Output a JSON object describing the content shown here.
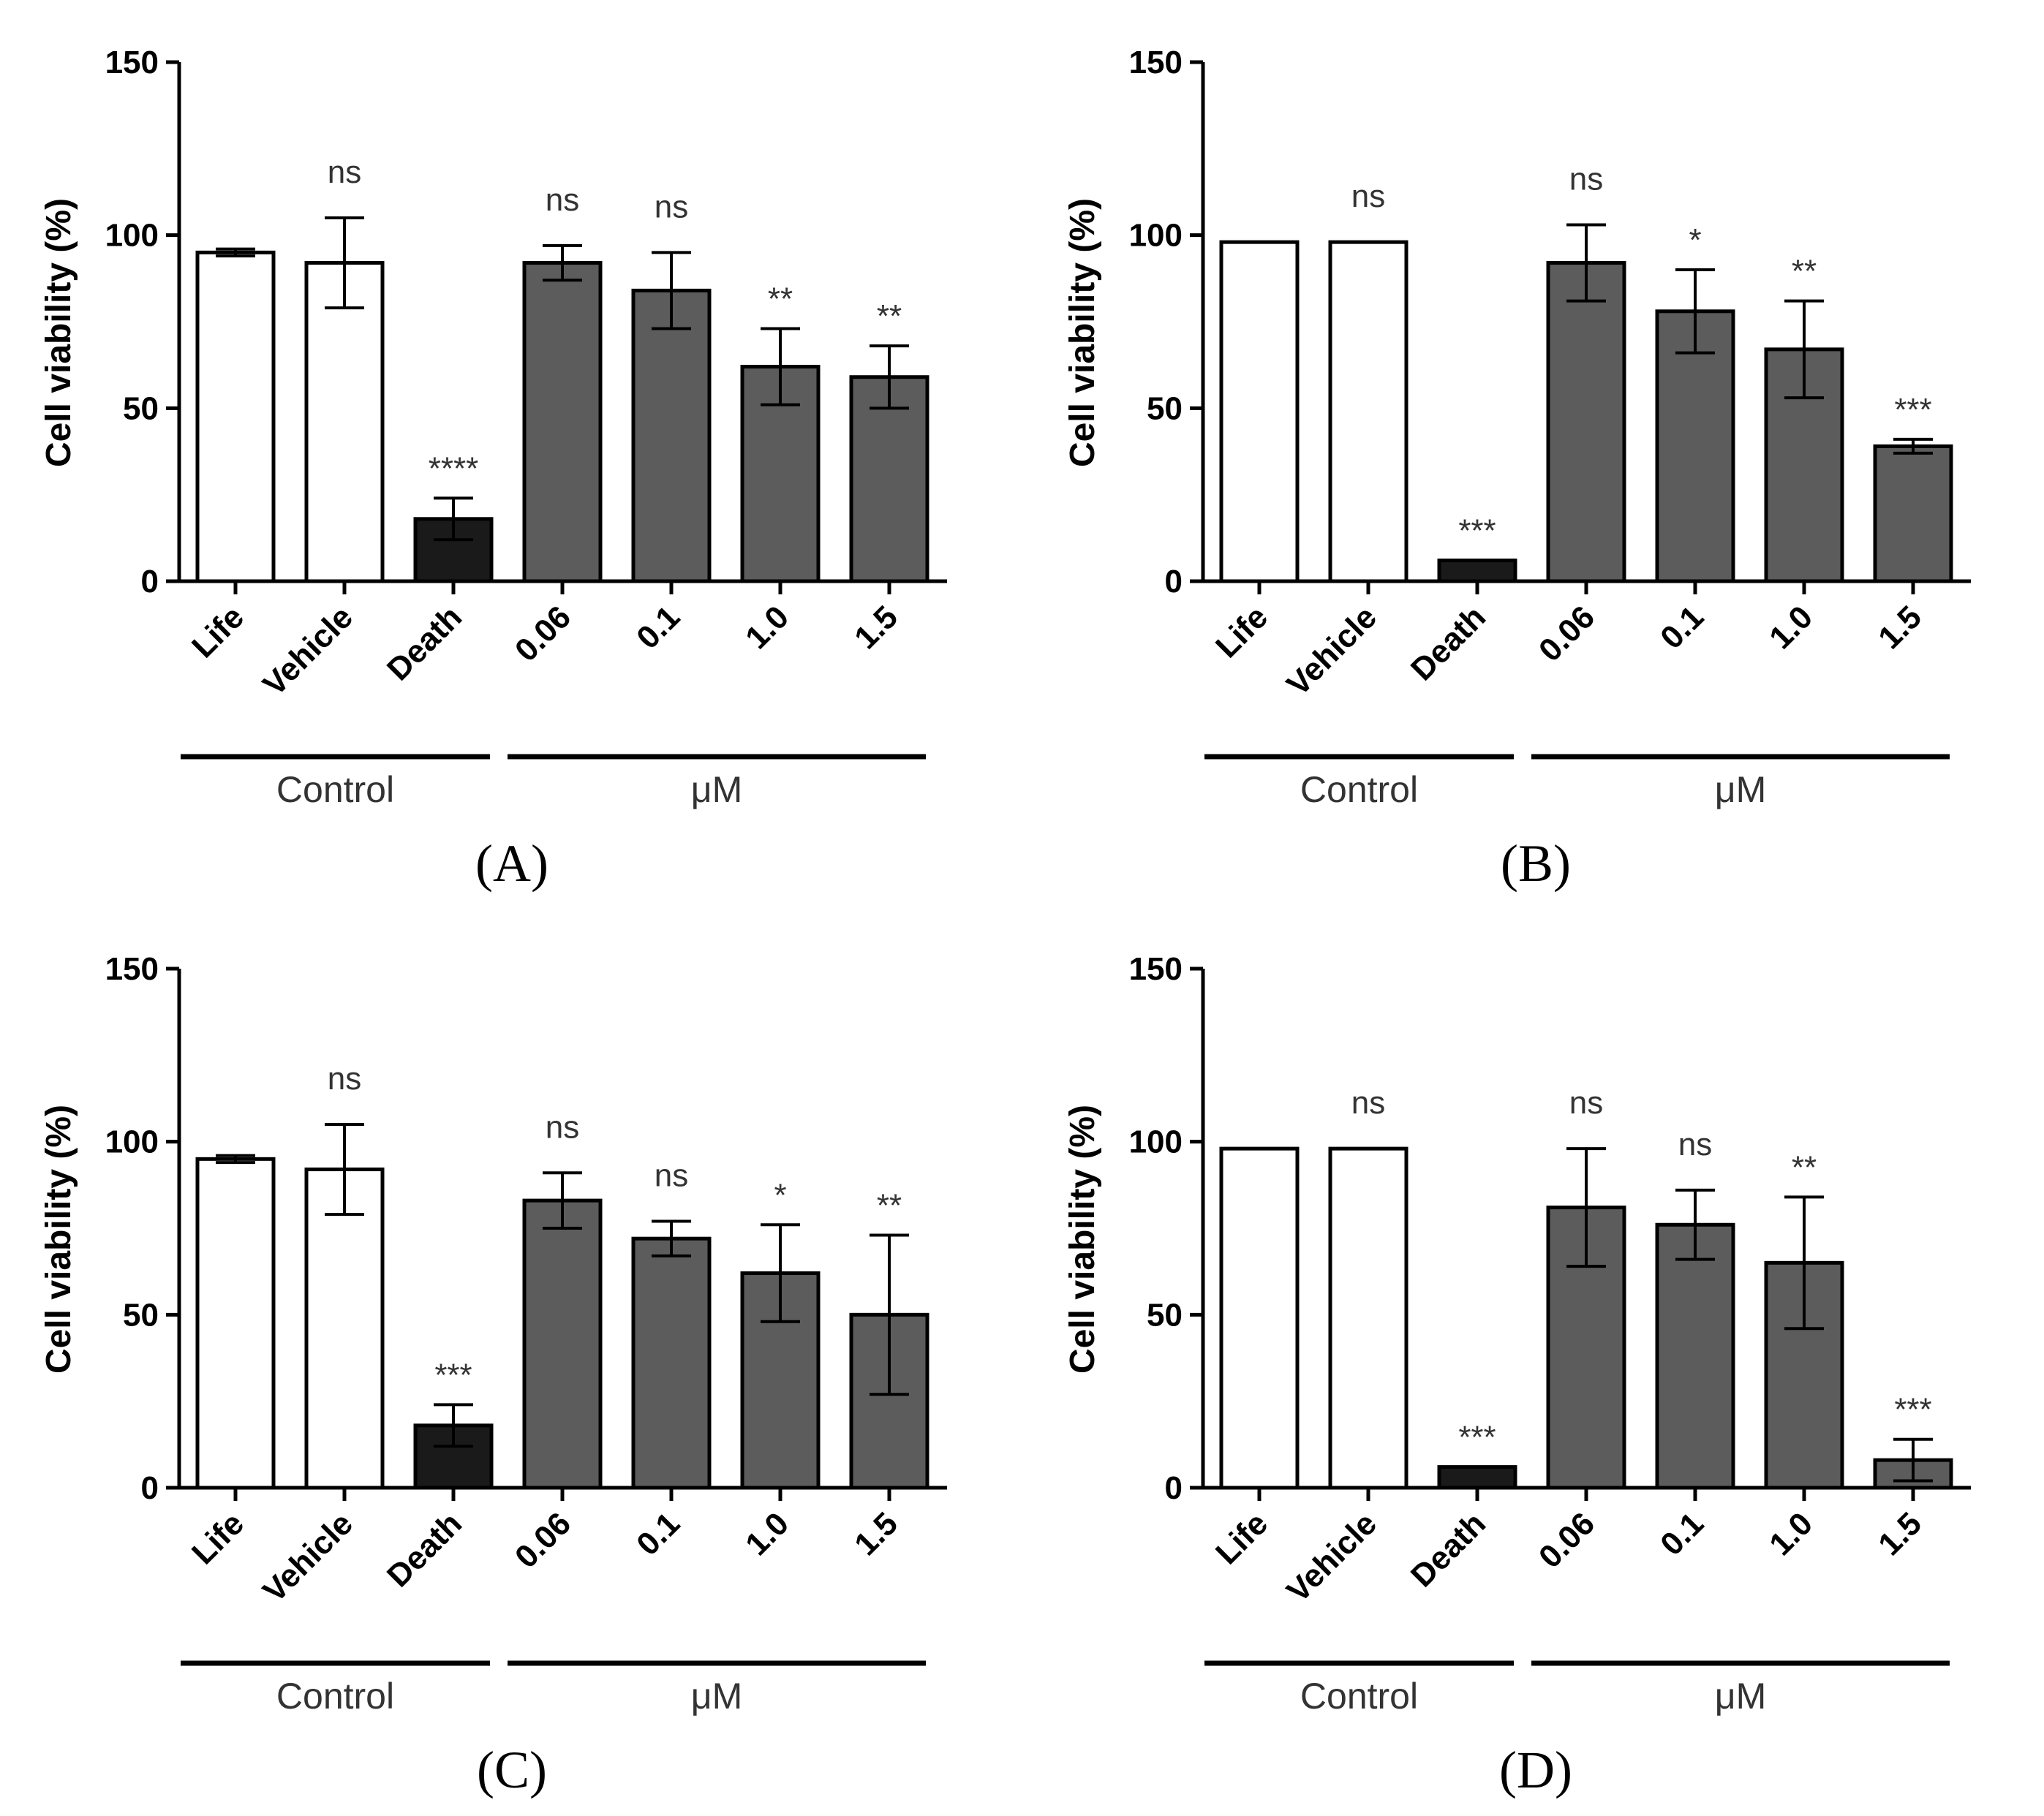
{
  "colors": {
    "life": "#ffffff",
    "vehicle": "#ffffff",
    "death": "#1a1a1a",
    "treatment": "#5c5c5c",
    "axis": "#000000"
  },
  "chart_data": [
    {
      "panel": "A",
      "type": "bar",
      "ylabel": "Cell viability (%)",
      "ylim": [
        0,
        150
      ],
      "yticks": [
        0,
        50,
        100,
        150
      ],
      "categories": [
        "Life",
        "Vehicle",
        "Death",
        "0.06",
        "0.1",
        "1.0",
        "1.5"
      ],
      "values": [
        95,
        92,
        18,
        92,
        84,
        62,
        59
      ],
      "errors": [
        1,
        13,
        6,
        5,
        11,
        11,
        9
      ],
      "significance": [
        "",
        "ns",
        "****",
        "ns",
        "ns",
        "**",
        "**"
      ],
      "groups": [
        {
          "label": "Control",
          "from": 0,
          "to": 2
        },
        {
          "label": "μM",
          "from": 3,
          "to": 6
        }
      ],
      "label": "(A)"
    },
    {
      "panel": "B",
      "type": "bar",
      "ylabel": "Cell viability (%)",
      "ylim": [
        0,
        150
      ],
      "yticks": [
        0,
        50,
        100,
        150
      ],
      "categories": [
        "Life",
        "Vehicle",
        "Death",
        "0.06",
        "0.1",
        "1.0",
        "1.5"
      ],
      "values": [
        98,
        98,
        6,
        92,
        78,
        67,
        39
      ],
      "errors": [
        0,
        0,
        0,
        11,
        12,
        14,
        2
      ],
      "significance": [
        "",
        "ns",
        "***",
        "ns",
        "*",
        "**",
        "***"
      ],
      "groups": [
        {
          "label": "Control",
          "from": 0,
          "to": 2
        },
        {
          "label": "μM",
          "from": 3,
          "to": 6
        }
      ],
      "label": "(B)"
    },
    {
      "panel": "C",
      "type": "bar",
      "ylabel": "Cell viability (%)",
      "ylim": [
        0,
        150
      ],
      "yticks": [
        0,
        50,
        100,
        150
      ],
      "categories": [
        "Life",
        "Vehicle",
        "Death",
        "0.06",
        "0.1",
        "1.0",
        "1.5"
      ],
      "values": [
        95,
        92,
        18,
        83,
        72,
        62,
        50
      ],
      "errors": [
        1,
        13,
        6,
        8,
        5,
        14,
        23
      ],
      "significance": [
        "",
        "ns",
        "***",
        "ns",
        "ns",
        "*",
        "**"
      ],
      "groups": [
        {
          "label": "Control",
          "from": 0,
          "to": 2
        },
        {
          "label": "μM",
          "from": 3,
          "to": 6
        }
      ],
      "label": "(C)"
    },
    {
      "panel": "D",
      "type": "bar",
      "ylabel": "Cell viability (%)",
      "ylim": [
        0,
        150
      ],
      "yticks": [
        0,
        50,
        100,
        150
      ],
      "categories": [
        "Life",
        "Vehicle",
        "Death",
        "0.06",
        "0.1",
        "1.0",
        "1.5"
      ],
      "values": [
        98,
        98,
        6,
        81,
        76,
        65,
        8
      ],
      "errors": [
        0,
        0,
        0,
        17,
        10,
        19,
        6
      ],
      "significance": [
        "",
        "ns",
        "***",
        "ns",
        "ns",
        "**",
        "***"
      ],
      "groups": [
        {
          "label": "Control",
          "from": 0,
          "to": 2
        },
        {
          "label": "μM",
          "from": 3,
          "to": 6
        }
      ],
      "label": "(D)"
    }
  ]
}
